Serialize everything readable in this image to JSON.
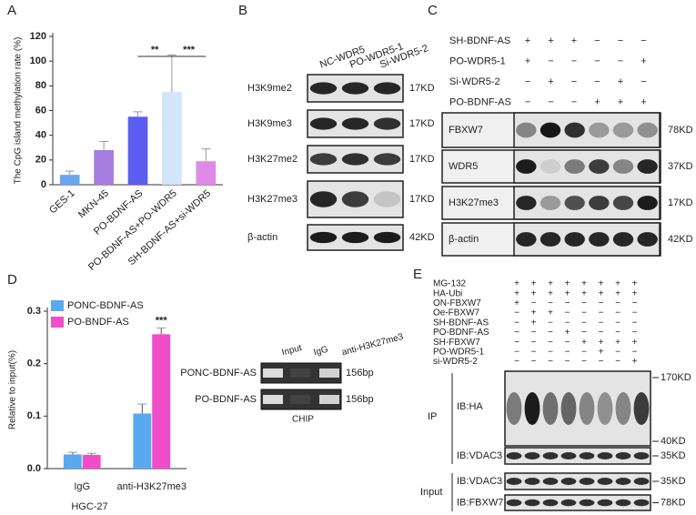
{
  "chart_data": [
    {
      "type": "bar",
      "panel_label": "A",
      "ylabel": "The CpG island methylation rate  (%)",
      "categories": [
        "GES-1",
        "MKN-45",
        "PO-BDNF-AS",
        "PO-BDNF-AS+PO-WDR5",
        "SH-BDNF-AS+si-WDR5"
      ],
      "values": [
        8,
        28,
        55,
        75,
        19
      ],
      "errors": [
        3,
        7,
        4,
        30,
        10
      ],
      "colors": [
        "#6aa6ef",
        "#a77de0",
        "#5b5cf0",
        "#d2e5fa",
        "#e08ae8"
      ],
      "ylim": [
        0,
        120
      ],
      "yticks": [
        0,
        20,
        40,
        60,
        80,
        100,
        120
      ],
      "annotations": [
        "**",
        "***"
      ]
    },
    {
      "type": "grouped_bar",
      "panel_label": "D",
      "ylabel": "Relative to input(%)",
      "xlabel": "HGC-27",
      "categories": [
        "IgG",
        "anti-H3K27me3"
      ],
      "series": [
        {
          "name": "PONC-BDNF-AS",
          "color": "#5aa9f0",
          "values": [
            0.027,
            0.105
          ],
          "errors": [
            0.004,
            0.018
          ]
        },
        {
          "name": "PO-BNDF-AS",
          "color": "#f24dc9",
          "values": [
            0.026,
            0.256
          ],
          "errors": [
            0.003,
            0.012
          ]
        }
      ],
      "ylim": [
        0,
        0.3
      ],
      "yticks": [
        {
          "value": 0,
          "label": "0.0"
        },
        0.1,
        0.2,
        0.3
      ],
      "annotations": [
        "***"
      ]
    }
  ],
  "panels": {
    "B": {
      "label": "B",
      "columns": [
        "NC-WDR5",
        "PO-WDR5-1",
        "Si-WDR5-2"
      ],
      "rows": [
        {
          "name": "H3K9me2",
          "size": "17KD"
        },
        {
          "name": "H3K9me3",
          "size": "17KD"
        },
        {
          "name": "H3K27me2",
          "size": "17KD"
        },
        {
          "name": "H3K27me3",
          "size": "17KD"
        },
        {
          "name": "β-actin",
          "size": "42KD"
        }
      ]
    },
    "C": {
      "label": "C",
      "conditions": [
        {
          "name": "SH-BDNF-AS",
          "signs": [
            "+",
            "+",
            "+",
            "−",
            "−",
            "−"
          ]
        },
        {
          "name": "PO-WDR5-1",
          "signs": [
            "+",
            "−",
            "−",
            "−",
            "−",
            "+"
          ]
        },
        {
          "name": "Si-WDR5-2",
          "signs": [
            "−",
            "+",
            "−",
            "−",
            "+",
            "−"
          ]
        },
        {
          "name": "PO-BDNF-AS",
          "signs": [
            "−",
            "−",
            "−",
            "+",
            "+",
            "+"
          ]
        }
      ],
      "rows": [
        {
          "name": "FBXW7",
          "size": "78KD"
        },
        {
          "name": "WDR5",
          "size": "37KD"
        },
        {
          "name": "H3K27me3",
          "size": "17KD"
        },
        {
          "name": "β-actin",
          "size": "42KD"
        }
      ]
    },
    "chip": {
      "columns": [
        "Input",
        "IgG",
        "anti-H3K27me3"
      ],
      "rows": [
        {
          "name": "PONC-BDNF-AS",
          "size": "156bp"
        },
        {
          "name": "PO-BDNF-AS",
          "size": "156bp"
        }
      ],
      "caption": "CHIP"
    },
    "E": {
      "label": "E",
      "conditions": [
        {
          "name": "MG-132",
          "signs": [
            "+",
            "+",
            "+",
            "+",
            "+",
            "+",
            "+",
            "+"
          ]
        },
        {
          "name": "HA-Ubi",
          "signs": [
            "+",
            "+",
            "+",
            "+",
            "+",
            "+",
            "+",
            "+"
          ]
        },
        {
          "name": "ON-FBXW7",
          "signs": [
            "+",
            "−",
            "−",
            "−",
            "−",
            "−",
            "−",
            "−"
          ]
        },
        {
          "name": "Oe-FBXW7",
          "signs": [
            "−",
            "+",
            "+",
            "−",
            "−",
            "−",
            "−",
            "−"
          ]
        },
        {
          "name": "SH-BDNF-AS",
          "signs": [
            "−",
            "+",
            "−",
            "−",
            "−",
            "−",
            "−",
            "−"
          ]
        },
        {
          "name": "PO-BDNF-AS",
          "signs": [
            "−",
            "−",
            "−",
            "+",
            "−",
            "−",
            "−",
            "−"
          ]
        },
        {
          "name": "SH-FBXW7",
          "signs": [
            "−",
            "−",
            "−",
            "−",
            "+",
            "+",
            "+",
            "+"
          ]
        },
        {
          "name": "PO-WDR5-1",
          "signs": [
            "−",
            "−",
            "−",
            "−",
            "−",
            "+",
            "−",
            "−"
          ]
        },
        {
          "name": "si-WDR5-2",
          "signs": [
            "−",
            "−",
            "−",
            "−",
            "−",
            "−",
            "−",
            "+"
          ]
        }
      ],
      "ip_label": "IP",
      "input_label": "Input",
      "blots": [
        {
          "name": "IB:HA",
          "markers": [
            "170KD",
            "40KD"
          ]
        },
        {
          "name": "IB:VDAC3",
          "markers": [
            "35KD"
          ]
        },
        {
          "name": "IB:VDAC3",
          "markers": [
            "35KD"
          ]
        },
        {
          "name": "IB:FBXW7",
          "markers": [
            "78KD"
          ]
        }
      ]
    }
  }
}
